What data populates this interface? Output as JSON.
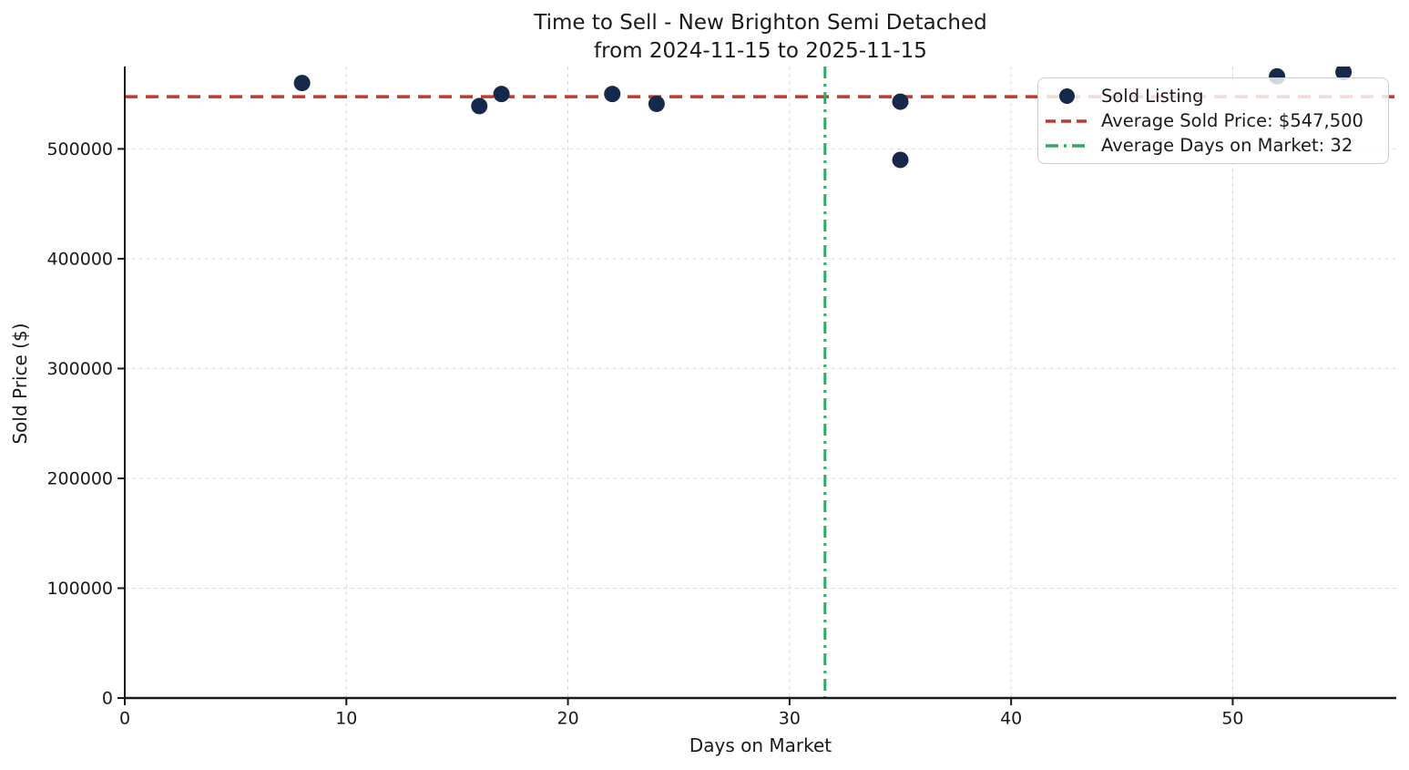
{
  "title": {
    "line1": "Time to Sell - New Brighton Semi Detached",
    "line2": "from 2024-11-15 to 2025-11-15"
  },
  "chart_data": {
    "type": "scatter",
    "title": "Time to Sell - New Brighton Semi Detached from 2024-11-15 to 2025-11-15",
    "xlabel": "Days on Market",
    "ylabel": "Sold Price ($)",
    "series_label": "Sold Listing",
    "points": [
      {
        "days": 8,
        "price": 560000
      },
      {
        "days": 16,
        "price": 539000
      },
      {
        "days": 17,
        "price": 550000
      },
      {
        "days": 22,
        "price": 550000
      },
      {
        "days": 24,
        "price": 541000
      },
      {
        "days": 35,
        "price": 543000
      },
      {
        "days": 35,
        "price": 490000
      },
      {
        "days": 52,
        "price": 566000
      },
      {
        "days": 55,
        "price": 570000
      }
    ],
    "avg_price": {
      "label": "Average Sold Price: $547,500",
      "value": 547500
    },
    "avg_days": {
      "label": "Average Days on Market: 32",
      "value": 32,
      "line_x": 31.6
    },
    "x_ticks": [
      0,
      10,
      20,
      30,
      40,
      50
    ],
    "y_ticks": [
      0,
      100000,
      200000,
      300000,
      400000,
      500000
    ],
    "xlim": [
      0,
      57.38
    ],
    "ylim": [
      0,
      575000
    ],
    "grid": true,
    "legend_position": "upper right"
  },
  "colors": {
    "marker": "#152a4a",
    "avg_price_line": "#c0392b",
    "avg_days_line": "#2eab63",
    "grid": "#d8d8d8",
    "spine": "#1a1a1a",
    "tick_text": "#1a1a1a",
    "legend_border": "#cccccc"
  }
}
